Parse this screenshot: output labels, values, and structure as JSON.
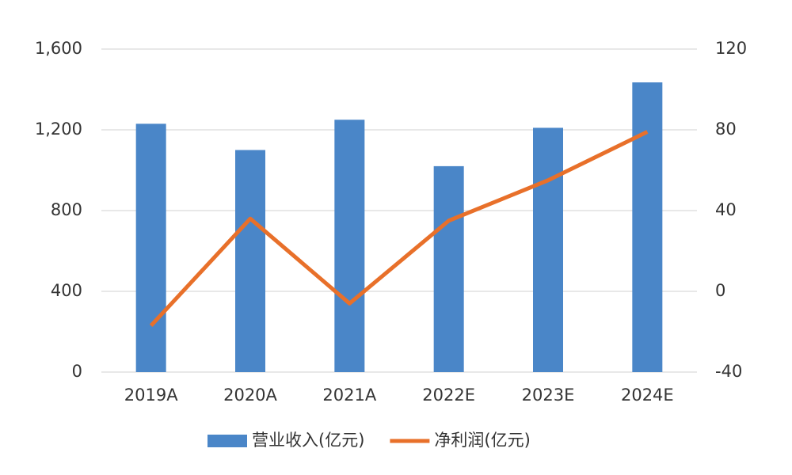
{
  "chart_data": {
    "type": "combo",
    "categories": [
      "2019A",
      "2020A",
      "2021A",
      "2022E",
      "2023E",
      "2024E"
    ],
    "series": [
      {
        "name": "营业收入(亿元)",
        "type": "bar",
        "color": "#4a86c8",
        "values": [
          1230,
          1100,
          1250,
          1020,
          1210,
          1435
        ]
      },
      {
        "name": "净利润(亿元)",
        "type": "line",
        "axis": "y2",
        "color": "#e8702a",
        "values": [
          -17,
          36,
          -6,
          35,
          55,
          79
        ]
      }
    ],
    "ylim": [
      0,
      1600
    ],
    "yticks": [
      0,
      400,
      800,
      {
        "value": 1200,
        "label": "1,200"
      },
      {
        "value": 1600,
        "label": "1,600"
      }
    ],
    "y2lim": [
      -40,
      120
    ],
    "y2ticks": [
      -40,
      0,
      40,
      80,
      120
    ],
    "grid": true,
    "legend": "bottom"
  }
}
